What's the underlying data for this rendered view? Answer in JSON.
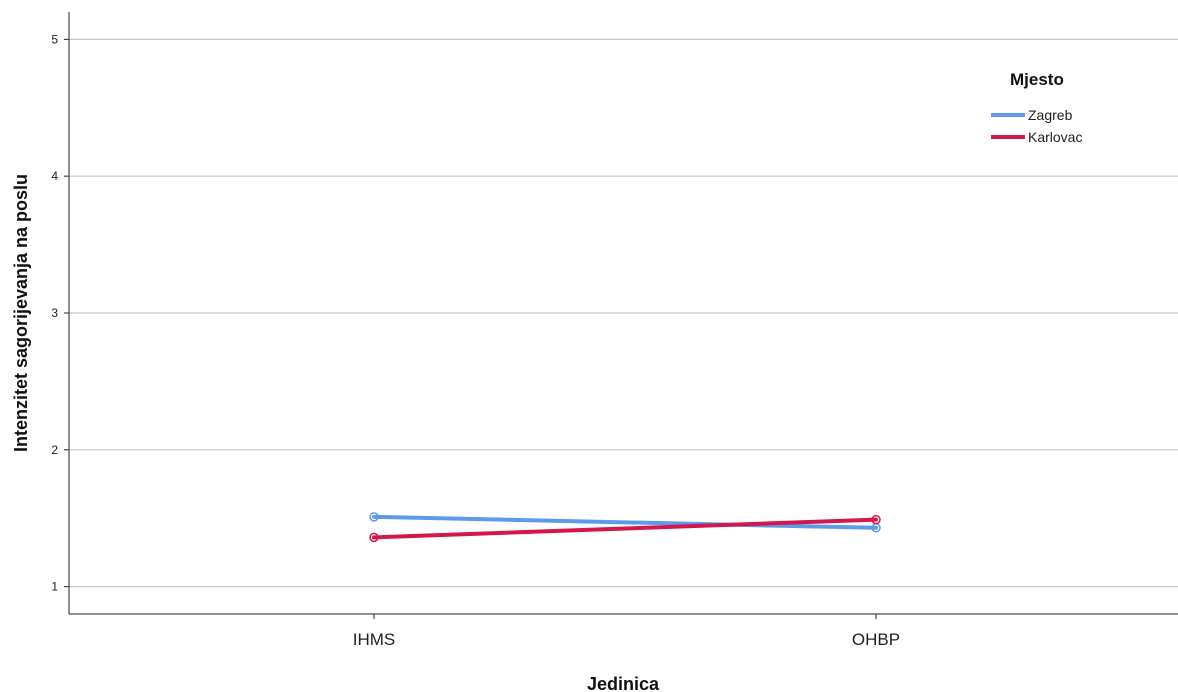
{
  "chart_data": {
    "type": "line",
    "title": "",
    "xlabel": "Jedinica",
    "ylabel": "Intenzitet sagorijevanja na poslu",
    "categories": [
      "IHMS",
      "OHBP"
    ],
    "ylim": [
      0.8,
      5.2
    ],
    "yticks": [
      "1",
      "2",
      "3",
      "4",
      "5"
    ],
    "grid": true,
    "legend": {
      "title": "Mjesto",
      "placement": "top-right"
    },
    "series": [
      {
        "name": "Zagreb",
        "values": [
          1.51,
          1.43
        ],
        "color": "#5b9bea"
      },
      {
        "name": "Karlovac",
        "values": [
          1.36,
          1.49
        ],
        "color": "#d4174a"
      }
    ],
    "gridline_color": "#c8c8c8",
    "axis_color": "#222222"
  }
}
